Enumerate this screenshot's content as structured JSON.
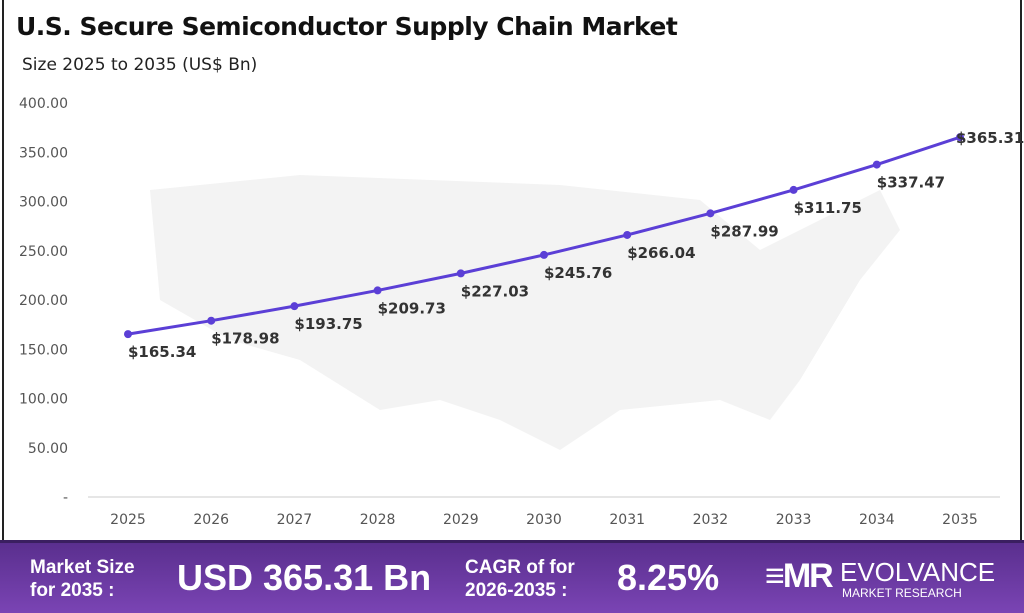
{
  "chart_data": {
    "type": "line",
    "title": "U.S. Secure Semiconductor Supply Chain Market",
    "subtitle": "Size 2025 to 2035 (US$ Bn)",
    "categories": [
      "2025",
      "2026",
      "2027",
      "2028",
      "2029",
      "2030",
      "2031",
      "2032",
      "2033",
      "2034",
      "2035"
    ],
    "values": [
      165.34,
      178.98,
      193.75,
      209.73,
      227.03,
      245.76,
      266.04,
      287.99,
      311.75,
      337.47,
      365.31
    ],
    "data_labels": [
      "$165.34",
      "$178.98",
      "$193.75",
      "$209.73",
      "$227.03",
      "$245.76",
      "$266.04",
      "$287.99",
      "$311.75",
      "$337.47",
      "$365.31"
    ],
    "yticks": [
      "-",
      "50.00",
      "100.00",
      "150.00",
      "200.00",
      "250.00",
      "300.00",
      "350.00",
      "400.00"
    ],
    "ylim": [
      0,
      400
    ],
    "grid": false,
    "line_color": "#5b3fd6"
  },
  "footer": {
    "market_size_label_1": "Market Size",
    "market_size_label_2": "for 2035 :",
    "market_size_value": "USD 365.31 Bn",
    "cagr_label_1": "CAGR of for",
    "cagr_label_2": "2026-2035 :",
    "cagr_value": "8.25%",
    "brand_name": "EVOLVANCE",
    "brand_sub": "MARKET RESEARCH",
    "logo": "EMR"
  }
}
